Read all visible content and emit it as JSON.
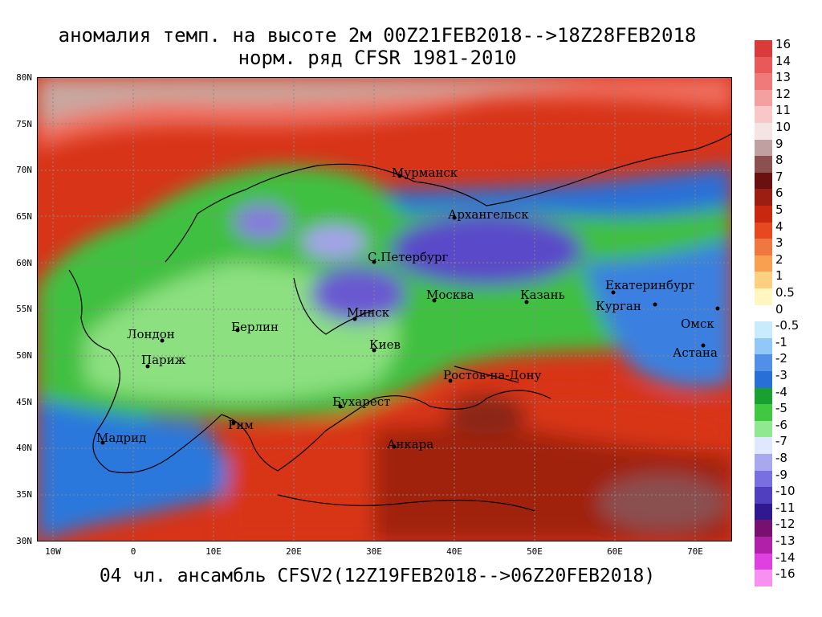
{
  "title_line1": "аномалия темп. на высоте 2м 00Z21FEB2018-->18Z28FEB2018",
  "title_line2": "норм. ряд CFSR 1981-2010",
  "footer": "04 чл. ансамбль CFSV2(12Z19FEB2018-->06Z20FEB2018)",
  "lat_labels": [
    "80N",
    "75N",
    "70N",
    "65N",
    "60N",
    "55N",
    "50N",
    "45N",
    "40N",
    "35N",
    "30N"
  ],
  "lon_labels": [
    "10W",
    "0",
    "10E",
    "20E",
    "30E",
    "40E",
    "50E",
    "60E",
    "70E"
  ],
  "cities": [
    {
      "name": "Мурманск"
    },
    {
      "name": "Архангельск"
    },
    {
      "name": "С.Петербург"
    },
    {
      "name": "Москва"
    },
    {
      "name": "Казань"
    },
    {
      "name": "Екатеринбург"
    },
    {
      "name": "Курган"
    },
    {
      "name": "Минск"
    },
    {
      "name": "Омск"
    },
    {
      "name": "Астана"
    },
    {
      "name": "Лондон"
    },
    {
      "name": "Берлин"
    },
    {
      "name": "Париж"
    },
    {
      "name": "Киев"
    },
    {
      "name": "Ростов-на-Дону"
    },
    {
      "name": "Бухарест"
    },
    {
      "name": "Рим"
    },
    {
      "name": "Мадрид"
    },
    {
      "name": "Анкара"
    }
  ],
  "colorbar": [
    {
      "label": "16",
      "color": "#d93a3a"
    },
    {
      "label": "14",
      "color": "#e85a5a"
    },
    {
      "label": "13",
      "color": "#f07a7a"
    },
    {
      "label": "12",
      "color": "#f4a0a0"
    },
    {
      "label": "11",
      "color": "#f8c8c8"
    },
    {
      "label": "10",
      "color": "#f4e4e4"
    },
    {
      "label": "9",
      "color": "#c0a0a0"
    },
    {
      "label": "8",
      "color": "#8c5050"
    },
    {
      "label": "7",
      "color": "#6a1010"
    },
    {
      "label": "6",
      "color": "#9c1e12"
    },
    {
      "label": "5",
      "color": "#c82810"
    },
    {
      "label": "4",
      "color": "#e84820"
    },
    {
      "label": "3",
      "color": "#f07840"
    },
    {
      "label": "2",
      "color": "#f8a050"
    },
    {
      "label": "1",
      "color": "#fcd080"
    },
    {
      "label": "0.5",
      "color": "#fff6c0"
    },
    {
      "label": "0",
      "color": "#ffffff"
    },
    {
      "label": "-0.5",
      "color": "#c8ecfc"
    },
    {
      "label": "-1",
      "color": "#90c8f8"
    },
    {
      "label": "-2",
      "color": "#5090e8"
    },
    {
      "label": "-3",
      "color": "#2870d8"
    },
    {
      "label": "-4",
      "color": "#18a030"
    },
    {
      "label": "-5",
      "color": "#40c840"
    },
    {
      "label": "-6",
      "color": "#90e890"
    },
    {
      "label": "-7",
      "color": "#e0e8ff"
    },
    {
      "label": "-8",
      "color": "#a8a8f0"
    },
    {
      "label": "-9",
      "color": "#7870e0"
    },
    {
      "label": "-10",
      "color": "#5040c0"
    },
    {
      "label": "-11",
      "color": "#301890"
    },
    {
      "label": "-12",
      "color": "#781070"
    },
    {
      "label": "-13",
      "color": "#b020a8"
    },
    {
      "label": "-14",
      "color": "#e040e0"
    },
    {
      "label": "-16",
      "color": "#f890f0"
    }
  ]
}
